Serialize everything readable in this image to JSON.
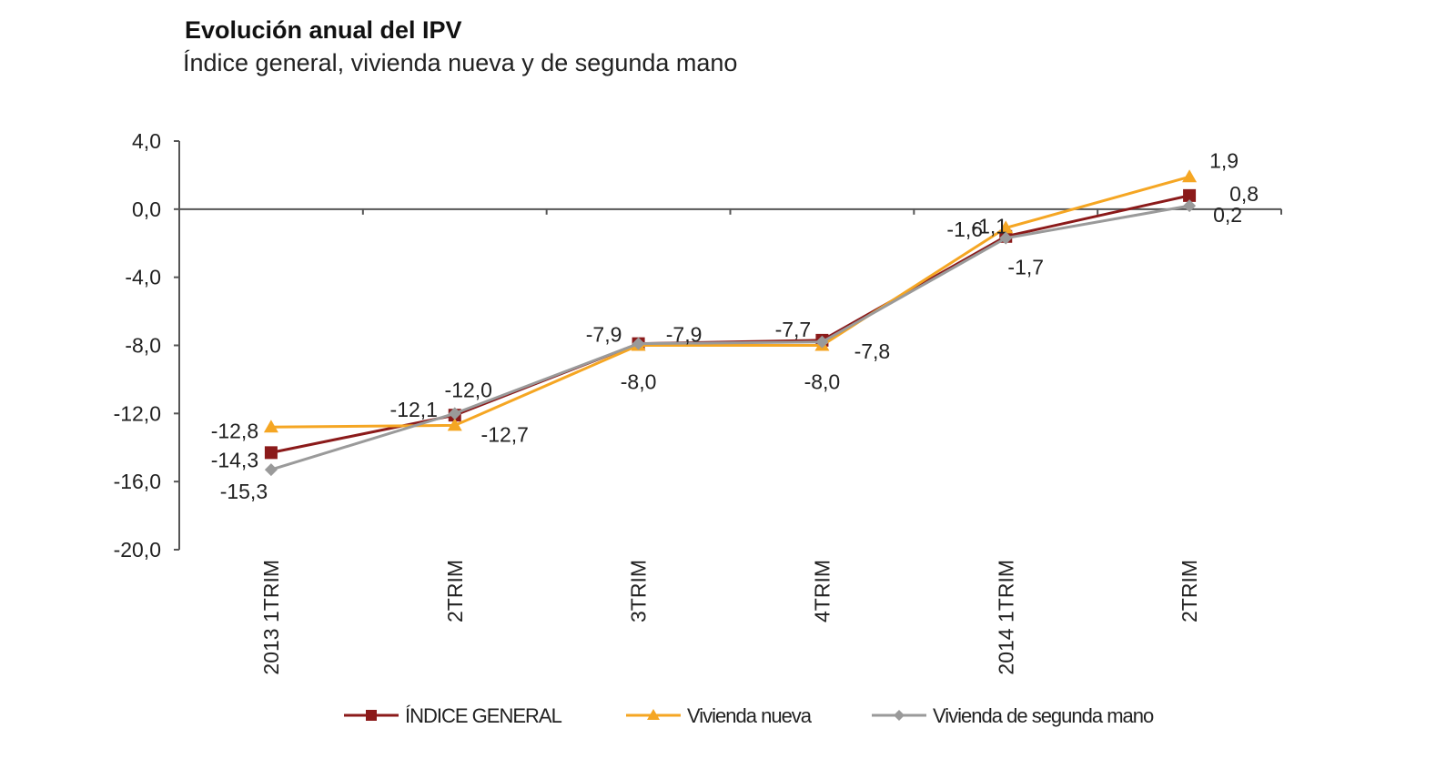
{
  "chart_data": {
    "type": "line",
    "title": "Evolución anual del IPV",
    "subtitle": "Índice general, vivienda  nueva y de segunda mano",
    "categories": [
      "2013 1TRIM",
      "2TRIM",
      "3TRIM",
      "4TRIM",
      "2014 1TRIM",
      "2TRIM"
    ],
    "ylim": [
      -20,
      4
    ],
    "yticks": [
      "4,0",
      "0,0",
      "-4,0",
      "-8,0",
      "-12,0",
      "-16,0",
      "-20,0"
    ],
    "ytick_values": [
      4,
      0,
      -4,
      -8,
      -12,
      -16,
      -20
    ],
    "grid": false,
    "legend": "bottom",
    "series": [
      {
        "name": "ÍNDICE GENERAL",
        "color": "#8b1a1a",
        "marker": "square",
        "values": [
          -14.3,
          -12.1,
          -7.9,
          -7.7,
          -1.6,
          0.8
        ],
        "labels": [
          "-14,3",
          "-12,1",
          "-7,9",
          "-7,7",
          "-1,6",
          "0,8"
        ]
      },
      {
        "name": "Vivienda nueva",
        "color": "#f5a623",
        "marker": "triangle",
        "values": [
          -12.8,
          -12.7,
          -8.0,
          -8.0,
          -1.1,
          1.9
        ],
        "labels": [
          "-12,8",
          "-12,7",
          "-8,0",
          "-8,0",
          "-1,1",
          "1,9"
        ]
      },
      {
        "name": "Vivienda de segunda mano",
        "color": "#9a9a9a",
        "marker": "diamond",
        "values": [
          -15.3,
          -12.0,
          -7.9,
          -7.8,
          -1.7,
          0.2
        ],
        "labels": [
          "-15,3",
          "-12,0",
          "-7,9",
          "-7,8",
          "-1,7",
          "0,2"
        ]
      }
    ]
  }
}
